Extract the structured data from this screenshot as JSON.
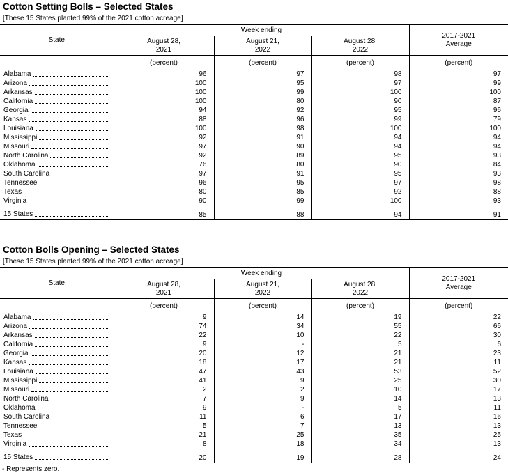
{
  "colors": {
    "text": "#000000",
    "background": "#ffffff",
    "border": "#000000"
  },
  "footnote": "- Represents zero.",
  "tables": [
    {
      "title": "Cotton Setting Bolls – Selected States",
      "note": "[These 15 States planted 99% of the 2021 cotton acreage]",
      "header": {
        "state_label": "State",
        "week_ending_label": "Week ending",
        "columns": [
          "August 28,\n2021",
          "August 21,\n2022",
          "August 28,\n2022"
        ],
        "average_label": "2017-2021\nAverage",
        "unit": "(percent)"
      },
      "rows": [
        {
          "state": "Alabama",
          "values": [
            "96",
            "97",
            "98",
            "97"
          ]
        },
        {
          "state": "Arizona",
          "values": [
            "100",
            "95",
            "97",
            "99"
          ]
        },
        {
          "state": "Arkansas",
          "values": [
            "100",
            "99",
            "100",
            "100"
          ]
        },
        {
          "state": "California",
          "values": [
            "100",
            "80",
            "90",
            "87"
          ]
        },
        {
          "state": "Georgia",
          "values": [
            "94",
            "92",
            "95",
            "96"
          ]
        },
        {
          "state": "Kansas",
          "values": [
            "88",
            "96",
            "99",
            "79"
          ]
        },
        {
          "state": "Louisiana",
          "values": [
            "100",
            "98",
            "100",
            "100"
          ]
        },
        {
          "state": "Mississippi",
          "values": [
            "92",
            "91",
            "94",
            "94"
          ]
        },
        {
          "state": "Missouri",
          "values": [
            "97",
            "90",
            "94",
            "94"
          ]
        },
        {
          "state": "North Carolina",
          "values": [
            "92",
            "89",
            "95",
            "93"
          ]
        },
        {
          "state": "Oklahoma",
          "values": [
            "76",
            "80",
            "90",
            "84"
          ]
        },
        {
          "state": "South Carolina",
          "values": [
            "97",
            "91",
            "95",
            "93"
          ]
        },
        {
          "state": "Tennessee",
          "values": [
            "96",
            "95",
            "97",
            "98"
          ]
        },
        {
          "state": "Texas",
          "values": [
            "80",
            "85",
            "92",
            "88"
          ]
        },
        {
          "state": "Virginia",
          "values": [
            "90",
            "99",
            "100",
            "93"
          ]
        }
      ],
      "total": {
        "state": "15 States",
        "values": [
          "85",
          "88",
          "94",
          "91"
        ]
      }
    },
    {
      "title": "Cotton Bolls Opening – Selected States",
      "note": "[These 15 States planted 99% of the 2021 cotton acreage]",
      "header": {
        "state_label": "State",
        "week_ending_label": "Week ending",
        "columns": [
          "August 28,\n2021",
          "August 21,\n2022",
          "August 28,\n2022"
        ],
        "average_label": "2017-2021\nAverage",
        "unit": "(percent)"
      },
      "rows": [
        {
          "state": "Alabama",
          "values": [
            "9",
            "14",
            "19",
            "22"
          ]
        },
        {
          "state": "Arizona",
          "values": [
            "74",
            "34",
            "55",
            "66"
          ]
        },
        {
          "state": "Arkansas",
          "values": [
            "22",
            "10",
            "22",
            "30"
          ]
        },
        {
          "state": "California",
          "values": [
            "9",
            "-",
            "5",
            "6"
          ]
        },
        {
          "state": "Georgia",
          "values": [
            "20",
            "12",
            "21",
            "23"
          ]
        },
        {
          "state": "Kansas",
          "values": [
            "18",
            "17",
            "21",
            "11"
          ]
        },
        {
          "state": "Louisiana",
          "values": [
            "47",
            "43",
            "53",
            "52"
          ]
        },
        {
          "state": "Mississippi",
          "values": [
            "41",
            "9",
            "25",
            "30"
          ]
        },
        {
          "state": "Missouri",
          "values": [
            "2",
            "2",
            "10",
            "17"
          ]
        },
        {
          "state": "North Carolina",
          "values": [
            "7",
            "9",
            "14",
            "13"
          ]
        },
        {
          "state": "Oklahoma",
          "values": [
            "9",
            "-",
            "5",
            "11"
          ]
        },
        {
          "state": "South Carolina",
          "values": [
            "11",
            "6",
            "17",
            "16"
          ]
        },
        {
          "state": "Tennessee",
          "values": [
            "5",
            "7",
            "13",
            "13"
          ]
        },
        {
          "state": "Texas",
          "values": [
            "21",
            "25",
            "35",
            "25"
          ]
        },
        {
          "state": "Virginia",
          "values": [
            "8",
            "18",
            "34",
            "13"
          ]
        }
      ],
      "total": {
        "state": "15 States",
        "values": [
          "20",
          "19",
          "28",
          "24"
        ]
      }
    }
  ]
}
